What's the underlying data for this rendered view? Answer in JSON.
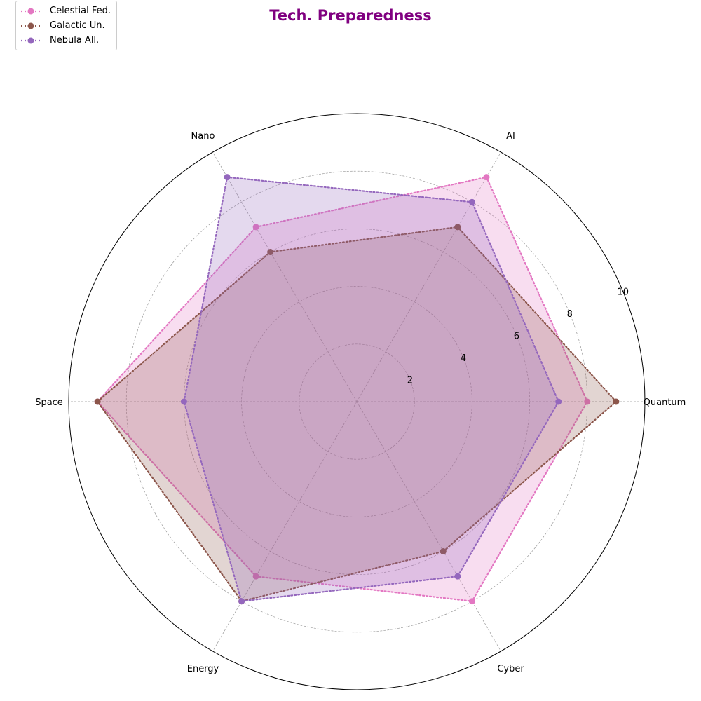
{
  "chart_data": {
    "type": "radar",
    "title": "Tech. Preparedness",
    "title_color": "#800080",
    "categories": [
      "Quantum",
      "AI",
      "Nano",
      "Space",
      "Energy",
      "Cyber"
    ],
    "radial_ticks": [
      2,
      4,
      6,
      8,
      10
    ],
    "rlim": [
      0,
      10
    ],
    "grid": true,
    "legend_position": "top-left",
    "series": [
      {
        "name": "Celestial Fed.",
        "color": "#e377c2",
        "values": [
          8,
          9,
          7,
          9,
          7,
          8
        ]
      },
      {
        "name": "Galactic Un.",
        "color": "#8c564b",
        "values": [
          9,
          7,
          6,
          9,
          8,
          6
        ]
      },
      {
        "name": "Nebula All.",
        "color": "#9467bd",
        "values": [
          7,
          8,
          9,
          6,
          8,
          7
        ]
      }
    ]
  }
}
